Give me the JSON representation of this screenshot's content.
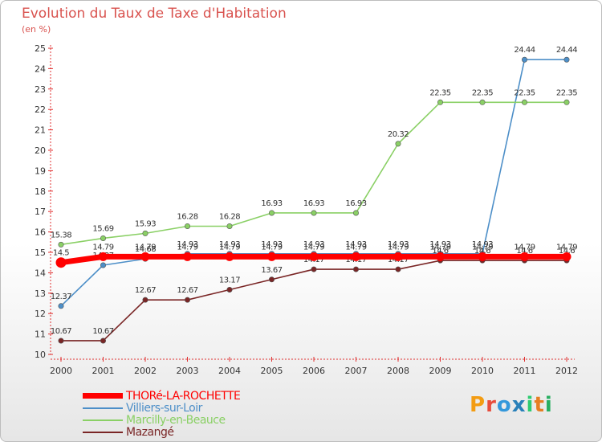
{
  "chart_data": {
    "type": "line",
    "title": "Evolution du Taux de Taxe d'Habitation",
    "subtitle": "(en %)",
    "x": [
      "2000",
      "2001",
      "2002",
      "2003",
      "2004",
      "2005",
      "2006",
      "2007",
      "2008",
      "2009",
      "2010",
      "2011",
      "2012"
    ],
    "ylim": [
      10,
      25
    ],
    "yticks": [
      10,
      11,
      12,
      13,
      14,
      15,
      16,
      17,
      18,
      19,
      20,
      21,
      22,
      23,
      24,
      25
    ],
    "series": [
      {
        "name": "Villiers-sur-Loir",
        "color": "#4d8fc8",
        "values": [
          12.37,
          14.37,
          14.68,
          14.93,
          14.93,
          14.93,
          14.93,
          14.93,
          14.93,
          14.93,
          14.93,
          24.44,
          24.44
        ],
        "labels": [
          "12.37",
          "14.37",
          "14.68",
          "14.93",
          "14.93",
          "14.93",
          "14.93",
          "14.93",
          "14.93",
          "14.93",
          "14.93",
          "24.44",
          "24.44"
        ]
      },
      {
        "name": "Marcilly-en-Beauce",
        "color": "#8ad065",
        "values": [
          15.38,
          15.69,
          15.93,
          16.28,
          16.28,
          16.93,
          16.93,
          16.93,
          20.32,
          22.35,
          22.35,
          22.35,
          22.35
        ],
        "labels": [
          "15.38",
          "15.69",
          "15.93",
          "16.28",
          "16.28",
          "16.93",
          "16.93",
          "16.93",
          "20.32",
          "22.35",
          "22.35",
          "22.35",
          "22.35"
        ]
      },
      {
        "name": "Mazangé",
        "color": "#7a2626",
        "values": [
          10.67,
          10.67,
          12.67,
          12.67,
          13.17,
          13.67,
          14.17,
          14.17,
          14.17,
          14.6,
          14.6,
          14.6,
          14.6
        ],
        "labels": [
          "10.67",
          "10.67",
          "12.67",
          "12.67",
          "13.17",
          "13.67",
          "14.17",
          "14.17",
          "14.17",
          "14.6",
          "14.6",
          "14.6",
          "14.6"
        ]
      },
      {
        "name": "THORé-LA-ROCHETTE",
        "color": "#ff0000",
        "values": [
          14.5,
          14.79,
          14.79,
          14.79,
          14.79,
          14.79,
          14.79,
          14.79,
          14.79,
          14.79,
          14.79,
          14.79,
          14.79
        ],
        "labels": [
          "14.5",
          "14.79",
          "14.79",
          "14.79",
          "14.79",
          "14.79",
          "14.79",
          "14.79",
          "14.79",
          "14.79",
          "14.79",
          "14.79",
          "14.79"
        ]
      }
    ],
    "legend_order": [
      "THORé-LA-ROCHETTE",
      "Villiers-sur-Loir",
      "Marcilly-en-Beauce",
      "Mazangé"
    ],
    "legend_position": "bottom-left",
    "grid": false
  },
  "logo": {
    "letters": [
      "P",
      "r",
      "o",
      "x",
      "i",
      "t",
      "i"
    ],
    "colors": [
      "#f39c12",
      "#e74c3c",
      "#3498db",
      "#2980b9",
      "#2ecc71",
      "#e67e22",
      "#27ae60"
    ]
  }
}
